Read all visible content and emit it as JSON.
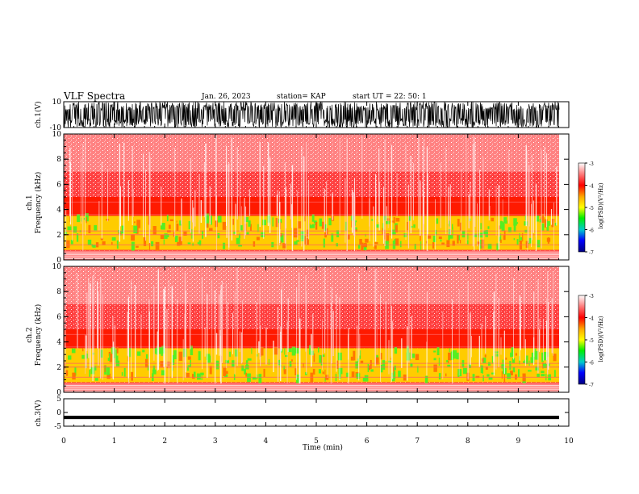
{
  "header": {
    "title": "VLF Spectra",
    "date": "Jan. 26, 2023",
    "station": "station= KAP",
    "start": "start  UT  =   22: 50: 1"
  },
  "chart_data": [
    {
      "type": "line",
      "name": "ch1-waveform",
      "ylabel": "ch.1(V)",
      "ylim": [
        -10,
        10
      ],
      "yticks": [
        "10",
        "-10"
      ],
      "x": [
        0,
        10
      ]
    },
    {
      "type": "heatmap",
      "name": "ch1-spectrogram",
      "ylabel": [
        "ch.1",
        "Frequency  (kHz)"
      ],
      "ylim": [
        0,
        10
      ],
      "yticks": [
        "0",
        "2",
        "4",
        "6",
        "8",
        "10"
      ],
      "xlim": [
        0,
        9.83
      ],
      "colorbar": {
        "label": "log(PSD)(V²/Hz)",
        "ticks": [
          "-3",
          "-4",
          "-5",
          "-6",
          "-7"
        ],
        "range": [
          -7,
          -3
        ]
      }
    },
    {
      "type": "heatmap",
      "name": "ch2-spectrogram",
      "ylabel": [
        "ch.2",
        "Frequency  (kHz)"
      ],
      "ylim": [
        0,
        10
      ],
      "yticks": [
        "0",
        "2",
        "4",
        "6",
        "8",
        "10"
      ],
      "xlim": [
        0,
        9.83
      ],
      "colorbar": {
        "label": "log(PSD)(V²/Hz)",
        "ticks": [
          "-3",
          "-4",
          "-5",
          "-6",
          "-7"
        ],
        "range": [
          -7,
          -3
        ]
      }
    },
    {
      "type": "line",
      "name": "ch3-waveform",
      "ylabel": "ch.3(V)",
      "ylim": [
        -5,
        5
      ],
      "yticks": [
        "5",
        "0",
        "-5"
      ],
      "x": [
        0,
        9.83
      ]
    }
  ],
  "xaxis": {
    "label": "Time  (min)",
    "ticks": [
      "0",
      "1",
      "2",
      "3",
      "4",
      "5",
      "6",
      "7",
      "8",
      "9",
      "10"
    ],
    "range": [
      0,
      10
    ]
  },
  "colors": {
    "background": "#ff0000",
    "spectro_low": "#ff2a00",
    "spectro_yellow": "#ffff00",
    "spectro_green": "#33ee33",
    "wave": "#000000"
  }
}
